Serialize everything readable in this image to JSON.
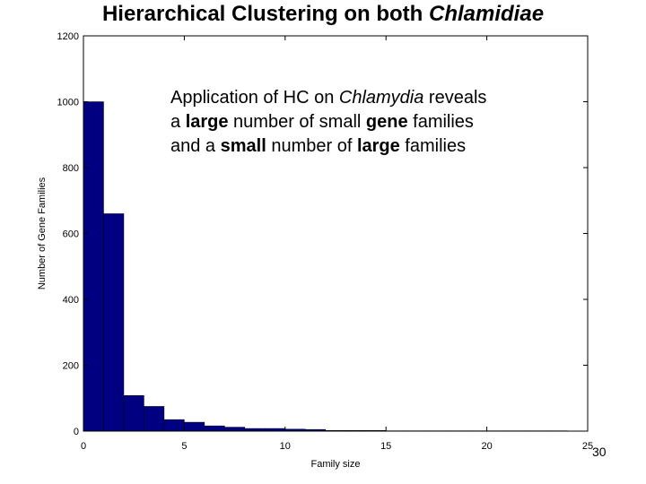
{
  "slide": {
    "title_prefix": "Hierarchical Clustering on both ",
    "title_italic": "Chlamidiae",
    "page_number": "30"
  },
  "annotation": {
    "line1_a": "Application of HC on ",
    "line1_italic": "Chlamydia",
    "line1_b": " reveals",
    "line2_a": "a ",
    "line2_bold1": "large",
    "line2_b": " number of  small ",
    "line2_bold2": "gene",
    "line2_c": " families",
    "line3_a": "and a ",
    "line3_bold1": "small",
    "line3_b": " number of ",
    "line3_bold2": "large",
    "line3_c": " families"
  },
  "chart_data": {
    "type": "bar",
    "xlabel": "Family size",
    "ylabel": "Number of Gene Families",
    "xlim": [
      0,
      25
    ],
    "ylim": [
      0,
      1200
    ],
    "xticks": [
      0,
      5,
      10,
      15,
      20,
      25
    ],
    "yticks": [
      0,
      200,
      400,
      600,
      800,
      1000,
      1200
    ],
    "bin_width": 1,
    "bins": [
      {
        "x0": 0,
        "value": 1000
      },
      {
        "x0": 1,
        "value": 660
      },
      {
        "x0": 2,
        "value": 108
      },
      {
        "x0": 3,
        "value": 75
      },
      {
        "x0": 4,
        "value": 35
      },
      {
        "x0": 5,
        "value": 27
      },
      {
        "x0": 6,
        "value": 16
      },
      {
        "x0": 7,
        "value": 12
      },
      {
        "x0": 8,
        "value": 8
      },
      {
        "x0": 9,
        "value": 8
      },
      {
        "x0": 10,
        "value": 6
      },
      {
        "x0": 11,
        "value": 5
      },
      {
        "x0": 12,
        "value": 2
      },
      {
        "x0": 13,
        "value": 2
      },
      {
        "x0": 14,
        "value": 2
      },
      {
        "x0": 15,
        "value": 1
      },
      {
        "x0": 16,
        "value": 1
      },
      {
        "x0": 17,
        "value": 1
      },
      {
        "x0": 18,
        "value": 1
      },
      {
        "x0": 19,
        "value": 1
      },
      {
        "x0": 20,
        "value": 1
      },
      {
        "x0": 21,
        "value": 1
      },
      {
        "x0": 22,
        "value": 1
      },
      {
        "x0": 23,
        "value": 1
      }
    ],
    "bar_color": "#000080",
    "grid": false,
    "legend": "none"
  }
}
